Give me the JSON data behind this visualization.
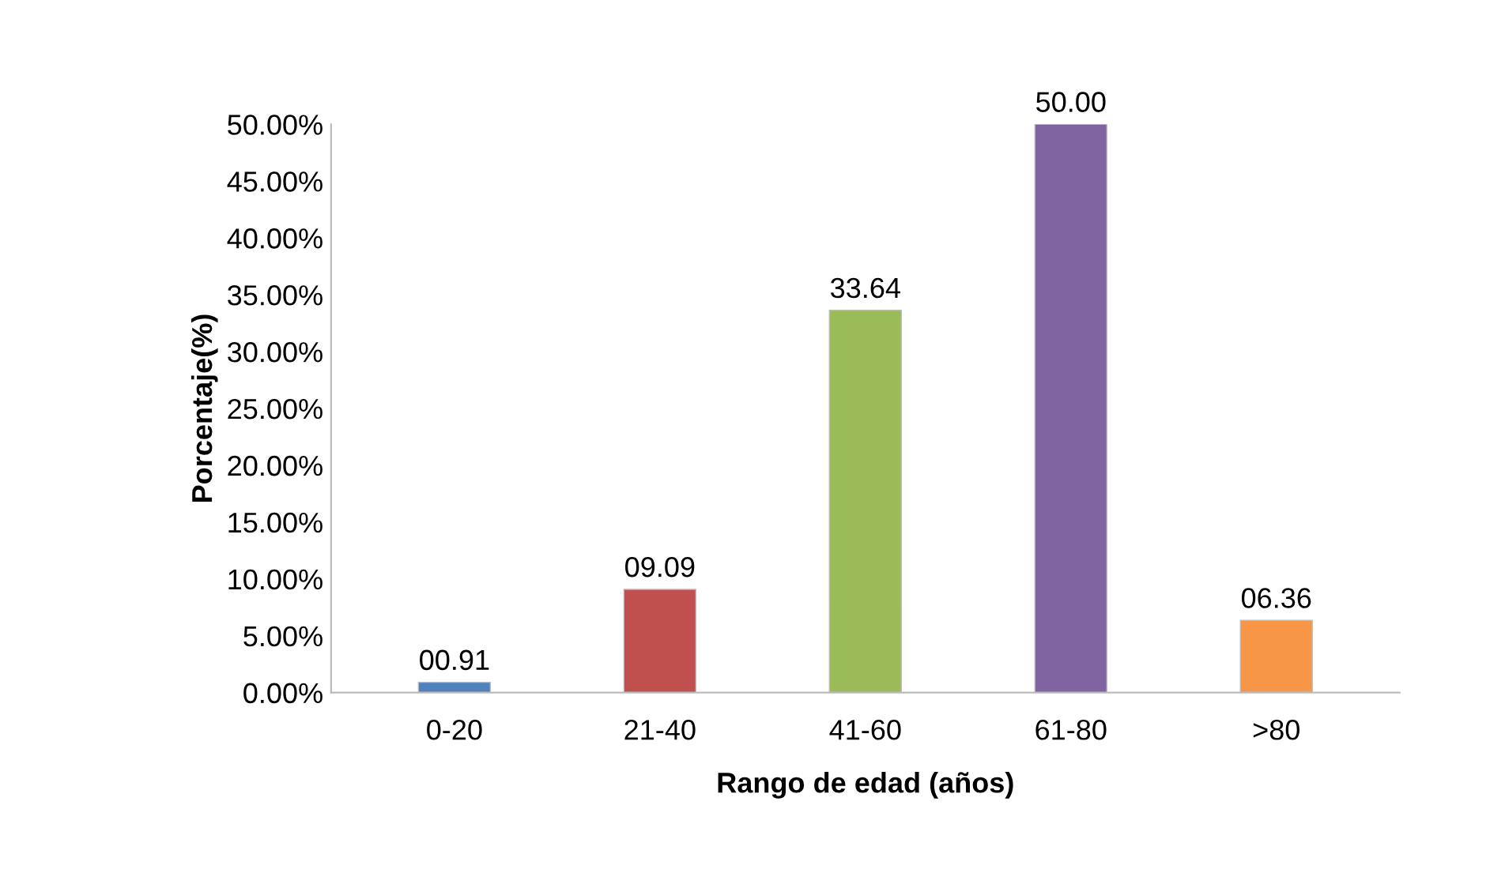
{
  "chart_data": {
    "type": "bar",
    "xlabel": "Rango de edad (años)",
    "ylabel": "Porcentaje(%)",
    "categories": [
      "0-20",
      "21-40",
      "41-60",
      "61-80",
      ">80"
    ],
    "values": [
      0.91,
      9.09,
      33.64,
      50.0,
      6.36
    ],
    "colors": [
      "#4f81bd",
      "#c0504d",
      "#9bbb59",
      "#8064a2",
      "#f79646"
    ],
    "value_labels": [
      "00.91",
      "09.09",
      "33.64",
      "50.00",
      "06.36"
    ],
    "ylim": [
      0,
      50
    ],
    "yticks": [
      {
        "value": 0,
        "label": "0.00%"
      },
      {
        "value": 5,
        "label": "5.00%"
      },
      {
        "value": 10,
        "label": "10.00%"
      },
      {
        "value": 15,
        "label": "15.00%"
      },
      {
        "value": 20,
        "label": "20.00%"
      },
      {
        "value": 25,
        "label": "25.00%"
      },
      {
        "value": 30,
        "label": "30.00%"
      },
      {
        "value": 35,
        "label": "35.00%"
      },
      {
        "value": 40,
        "label": "40.00%"
      },
      {
        "value": 45,
        "label": "45.00%"
      },
      {
        "value": 50,
        "label": "50.00%"
      }
    ],
    "grid": false
  }
}
